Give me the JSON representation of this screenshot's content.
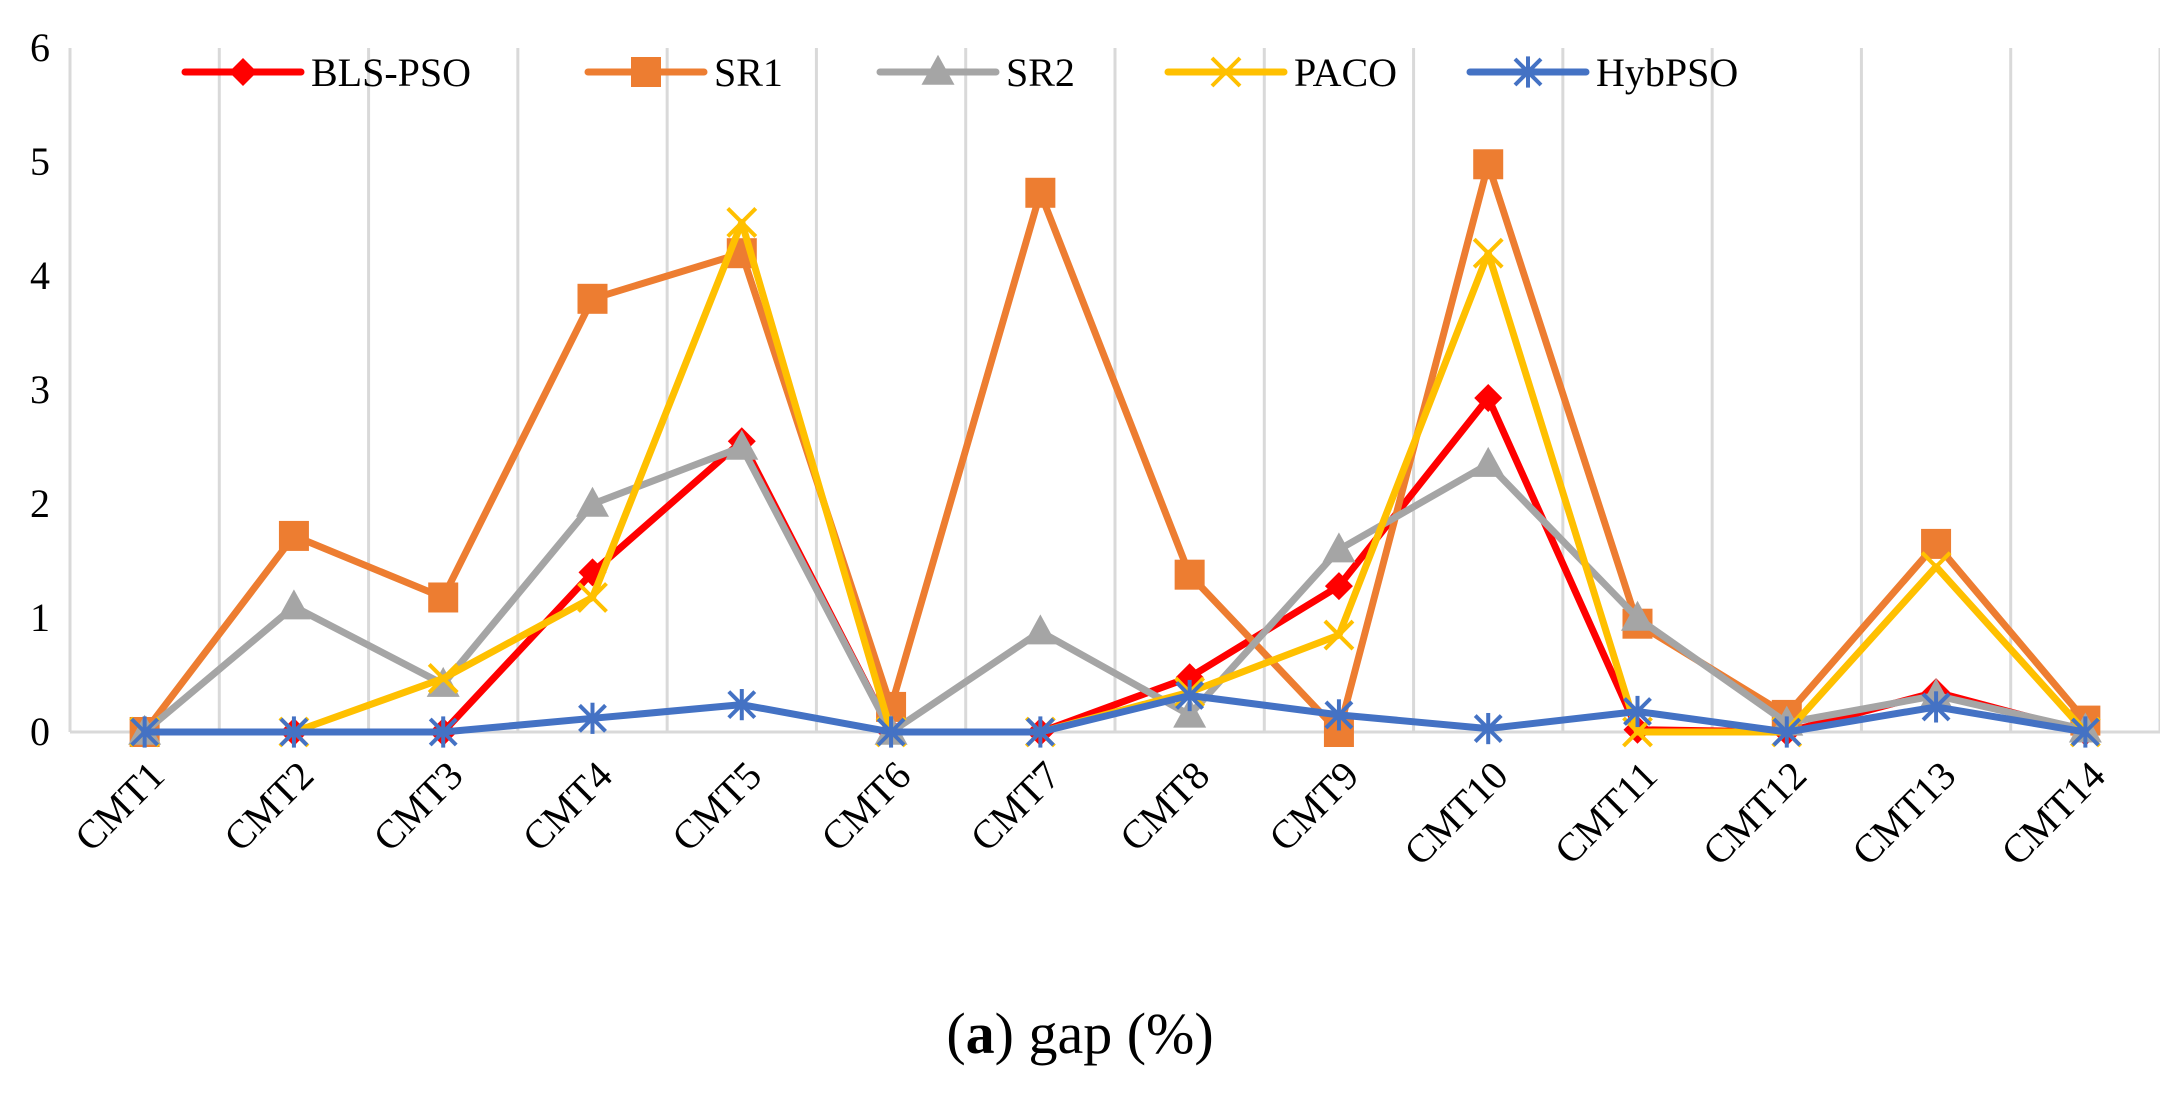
{
  "chart_data": {
    "type": "line",
    "title": "",
    "xlabel": "",
    "ylabel": "",
    "ylim": [
      0,
      6
    ],
    "yticks": [
      "0",
      "1",
      "2",
      "3",
      "4",
      "5",
      "6"
    ],
    "grid": "vertical",
    "legend_position": "top",
    "categories": [
      "CMT1",
      "CMT2",
      "CMT3",
      "CMT4",
      "CMT5",
      "CMT6",
      "CMT7",
      "CMT8",
      "CMT9",
      "CMT10",
      "CMT11",
      "CMT12",
      "CMT13",
      "CMT14"
    ],
    "series": [
      {
        "name": "BLS-PSO",
        "color": "#ff0000",
        "marker": "diamond",
        "values": [
          0,
          0,
          0,
          1.4,
          2.55,
          0,
          0,
          0.48,
          1.28,
          2.93,
          0.02,
          0,
          0.35,
          0
        ]
      },
      {
        "name": "SR1",
        "color": "#ed7d31",
        "marker": "square",
        "values": [
          0,
          1.72,
          1.18,
          3.8,
          4.2,
          0.22,
          4.73,
          1.38,
          0,
          4.98,
          0.95,
          0.15,
          1.65,
          0.1
        ]
      },
      {
        "name": "SR2",
        "color": "#a5a5a5",
        "marker": "triangle",
        "values": [
          0,
          1.1,
          0.42,
          2.0,
          2.5,
          0,
          0.88,
          0.15,
          1.6,
          2.35,
          1.0,
          0.08,
          0.32,
          0.02
        ]
      },
      {
        "name": "PACO",
        "color": "#ffc000",
        "marker": "x",
        "values": [
          0,
          0,
          0.47,
          1.18,
          4.47,
          0,
          0,
          0.35,
          0.85,
          4.2,
          0,
          0,
          1.45,
          0
        ]
      },
      {
        "name": "HybPSO",
        "color": "#4472c4",
        "marker": "star",
        "values": [
          0,
          0,
          0,
          0.12,
          0.24,
          0,
          0,
          0.32,
          0.15,
          0.03,
          0.18,
          0,
          0.22,
          0
        ]
      }
    ]
  },
  "caption": {
    "label": "a",
    "text": "gap (%)"
  }
}
